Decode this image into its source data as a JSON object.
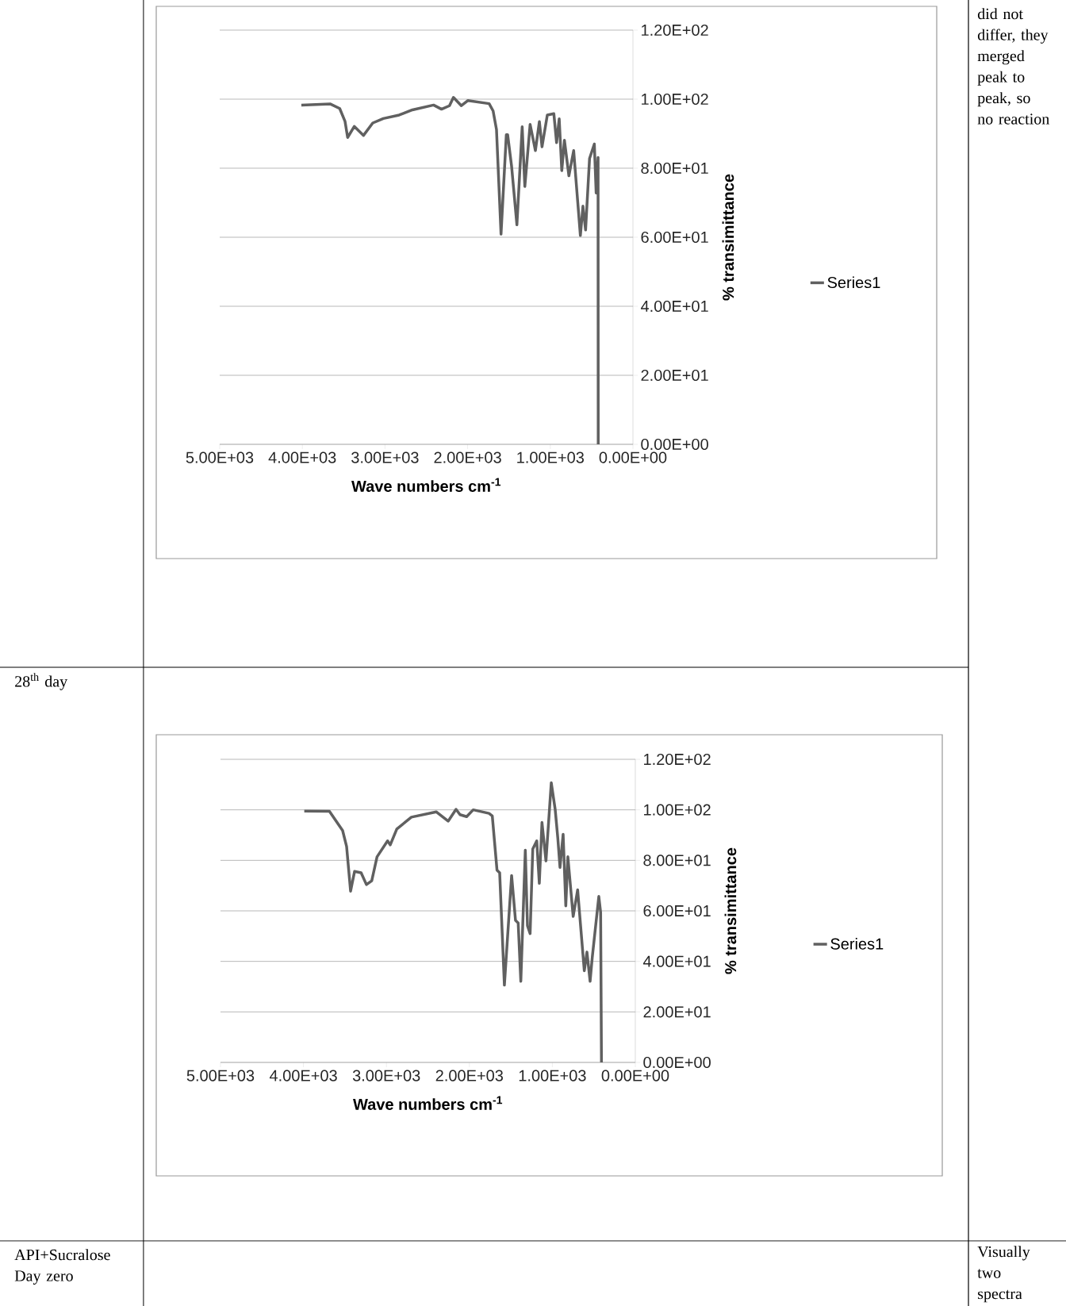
{
  "chart_data": [
    {
      "type": "line",
      "xlabel": "Wave numbers cm$^{-1}$",
      "ylabel": "% transimittance",
      "x": [
        4012,
        3660,
        3548,
        3484,
        3452,
        3372,
        3260,
        3148,
        3020,
        2828,
        2668,
        2412,
        2316,
        2220,
        2172,
        2076,
        1996,
        1740,
        1692,
        1651,
        1596,
        1532,
        1516,
        1468,
        1404,
        1340,
        1308,
        1244,
        1180,
        1132,
        1100,
        1036,
        957,
        924,
        892,
        861,
        829,
        775,
        717,
        636,
        605,
        573,
        525,
        467,
        445,
        422,
        420
      ],
      "series": [
        {
          "name": "Series1",
          "color": "#606060",
          "values": [
            98.3,
            98.6,
            97.3,
            93.6,
            88.9,
            92.1,
            89.5,
            93.1,
            94.4,
            95.4,
            96.9,
            98.3,
            97.1,
            98.1,
            100.5,
            98.1,
            99.6,
            98.7,
            96.6,
            91.2,
            60.9,
            89.7,
            89.7,
            80.5,
            63.6,
            92.0,
            74.7,
            92.7,
            85.1,
            93.5,
            86.2,
            95.4,
            95.8,
            87.4,
            94.3,
            79.3,
            88.1,
            77.8,
            85.1,
            60.5,
            69.0,
            62.1,
            82.8,
            87.0,
            72.8,
            83.1,
            0
          ]
        }
      ],
      "xlim": [
        5000,
        0
      ],
      "ylim": [
        0,
        120
      ],
      "xticks": [
        {
          "value": 5000,
          "label": "5.00E+03"
        },
        {
          "value": 4000,
          "label": "4.00E+03"
        },
        {
          "value": 3000,
          "label": "3.00E+03"
        },
        {
          "value": 2000,
          "label": "2.00E+03"
        },
        {
          "value": 1000,
          "label": "1.00E+03"
        },
        {
          "value": 0,
          "label": "0.00E+00"
        }
      ],
      "yticks": [
        {
          "value": 0,
          "label": "0.00E+00"
        },
        {
          "value": 20,
          "label": "2.00E+01"
        },
        {
          "value": 40,
          "label": "4.00E+01"
        },
        {
          "value": 60,
          "label": "6.00E+01"
        },
        {
          "value": 80,
          "label": "8.00E+01"
        },
        {
          "value": 100,
          "label": "1.00E+02"
        },
        {
          "value": 120,
          "label": "1.20E+02"
        }
      ],
      "grid": "y",
      "legend": "right"
    },
    {
      "type": "line",
      "xlabel": "Wave numbers cm$^{-1}$",
      "ylabel": "% transimittance",
      "x": [
        3990,
        3687,
        3528,
        3480,
        3432,
        3384,
        3305,
        3241,
        3177,
        3113,
        2986,
        2954,
        2875,
        2699,
        2400,
        2256,
        2161,
        2113,
        2033,
        1954,
        1763,
        1724,
        1667,
        1635,
        1578,
        1491,
        1444,
        1412,
        1380,
        1326,
        1300,
        1268,
        1236,
        1188,
        1157,
        1125,
        1077,
        1013,
        966,
        934,
        908,
        870,
        838,
        813,
        749,
        695,
        615,
        583,
        545,
        519,
        440,
        418,
        408
      ],
      "series": [
        {
          "name": "Series1",
          "color": "#606060",
          "values": [
            99.5,
            99.4,
            91.8,
            85.5,
            67.8,
            75.6,
            75.1,
            70.4,
            71.9,
            81.4,
            87.7,
            86.1,
            92.4,
            97.1,
            99.2,
            95.5,
            100.2,
            98.1,
            97.3,
            100.0,
            98.6,
            97.6,
            76.1,
            75.1,
            30.6,
            74.0,
            56.2,
            55.2,
            32.1,
            84.0,
            54.1,
            51.0,
            84.5,
            87.7,
            70.9,
            95.0,
            79.8,
            110.7,
            100.2,
            88.7,
            77.2,
            90.3,
            62.0,
            81.4,
            57.8,
            68.3,
            36.3,
            43.7,
            32.1,
            41.6,
            65.7,
            59.4,
            0
          ]
        }
      ],
      "xlim": [
        5000,
        0
      ],
      "ylim": [
        0,
        120
      ],
      "xticks": [
        {
          "value": 5000,
          "label": "5.00E+03"
        },
        {
          "value": 4000,
          "label": "4.00E+03"
        },
        {
          "value": 3000,
          "label": "3.00E+03"
        },
        {
          "value": 2000,
          "label": "2.00E+03"
        },
        {
          "value": 1000,
          "label": "1.00E+03"
        },
        {
          "value": 0,
          "label": "0.00E+00"
        }
      ],
      "yticks": [
        {
          "value": 0,
          "label": "0.00E+00"
        },
        {
          "value": 20,
          "label": "2.00E+01"
        },
        {
          "value": 40,
          "label": "4.00E+01"
        },
        {
          "value": 60,
          "label": "6.00E+01"
        },
        {
          "value": 80,
          "label": "8.00E+01"
        },
        {
          "value": 100,
          "label": "1.00E+02"
        },
        {
          "value": 120,
          "label": "1.20E+02"
        }
      ],
      "grid": "y",
      "legend": "right"
    },
    {
      "type": "other",
      "annotations": [
        "did not differ, they merged peak to peak, so no reaction",
        "28$^{th}$ day",
        "API+Sucralose Day zero",
        "Visually two spectra"
      ]
    }
  ]
}
